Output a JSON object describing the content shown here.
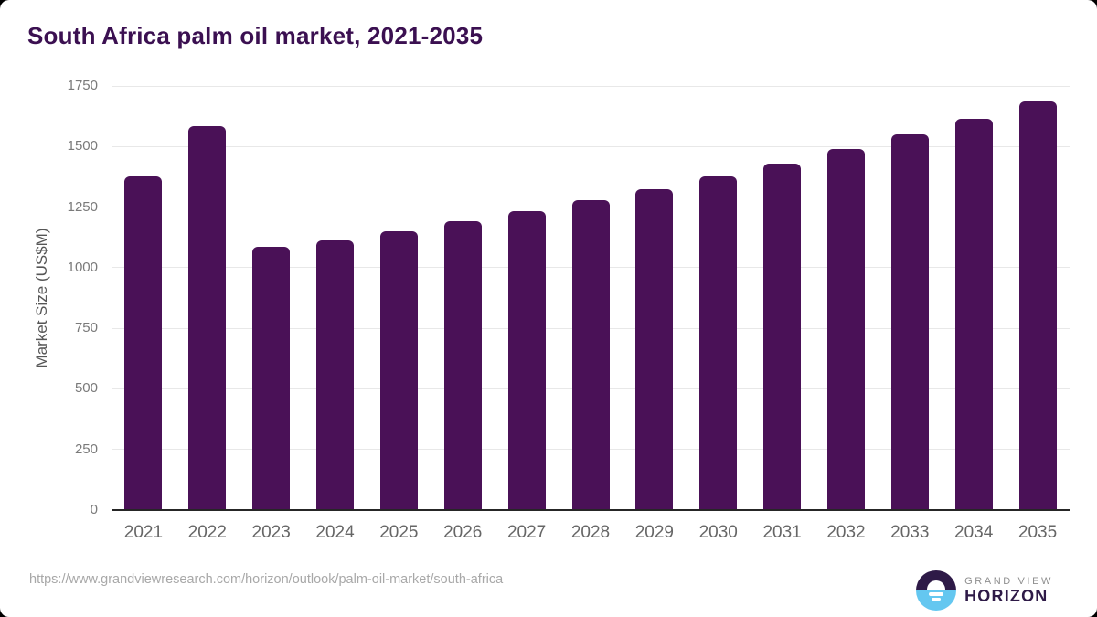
{
  "page": {
    "source_url": "https://www.grandviewresearch.com/horizon/outlook/palm-oil-market/south-africa"
  },
  "chart_data": {
    "type": "bar",
    "title": "South Africa palm oil market, 2021-2035",
    "categories": [
      "2021",
      "2022",
      "2023",
      "2024",
      "2025",
      "2026",
      "2027",
      "2028",
      "2029",
      "2030",
      "2031",
      "2032",
      "2033",
      "2034",
      "2035"
    ],
    "values": [
      1377,
      1583,
      1086,
      1114,
      1152,
      1191,
      1234,
      1278,
      1324,
      1375,
      1430,
      1488,
      1550,
      1614,
      1686
    ],
    "xlabel": "",
    "ylabel": "Market Size (US$M)",
    "ylim": [
      0,
      1750
    ],
    "yticks": [
      0,
      250,
      500,
      750,
      1000,
      1250,
      1500,
      1750
    ],
    "grid": true,
    "legend": false,
    "bar_color": "#4a1157",
    "title_color": "#3b1051",
    "gridline_color": "#e8e8e8",
    "axis_line_color": "#262626"
  },
  "branding": {
    "logo_top_text": "GRAND VIEW",
    "logo_bottom_text": "HORIZON",
    "logo_dark_color": "#2e1a47",
    "logo_blue_color": "#64c7f0"
  }
}
